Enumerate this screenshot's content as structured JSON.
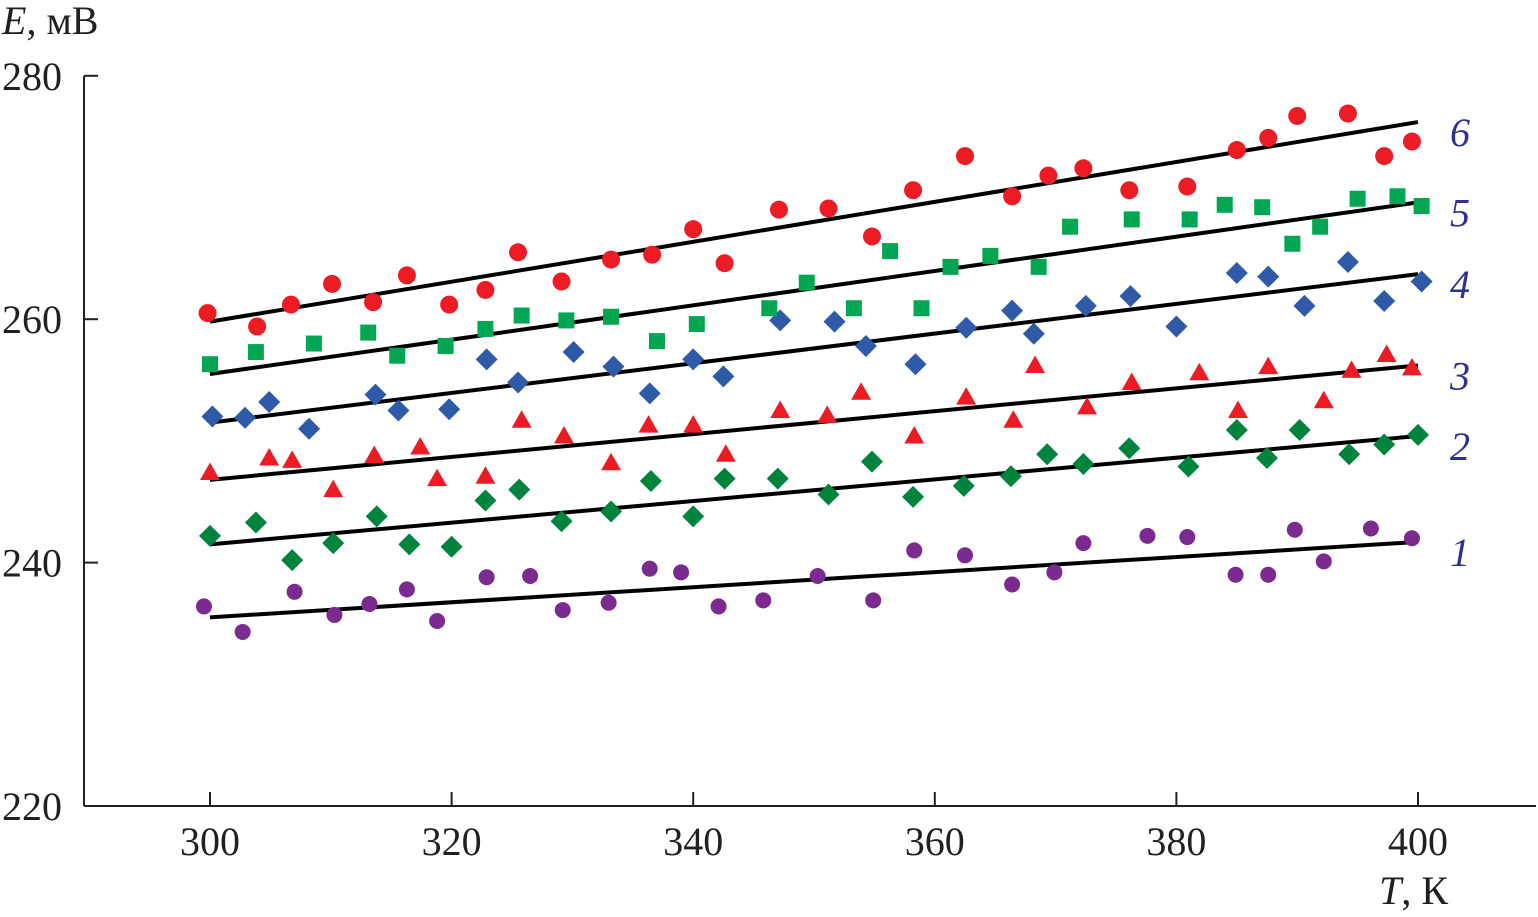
{
  "chart_data": {
    "type": "scatter",
    "xlabel": {
      "symbol": "T",
      "unit": ", К"
    },
    "ylabel": {
      "symbol": "E",
      "unit": ", мВ"
    },
    "xlim": [
      290,
      410
    ],
    "ylim": [
      220,
      280
    ],
    "xticks": [
      300,
      320,
      340,
      360,
      380,
      400
    ],
    "yticks": [
      220,
      240,
      260,
      280
    ],
    "grid": false,
    "series": [
      {
        "label": "1",
        "marker": "circle-small",
        "color": "#7b2a8f",
        "fit": [
          [
            300,
            235.5
          ],
          [
            400,
            241.7
          ]
        ],
        "points": [
          [
            299.5,
            236.4
          ],
          [
            302.7,
            234.3
          ],
          [
            307,
            237.6
          ],
          [
            310.3,
            235.7
          ],
          [
            313.2,
            236.6
          ],
          [
            316.3,
            237.8
          ],
          [
            318.8,
            235.2
          ],
          [
            322.9,
            238.8
          ],
          [
            326.5,
            238.9
          ],
          [
            329.2,
            236.1
          ],
          [
            333,
            236.7
          ],
          [
            336.4,
            239.5
          ],
          [
            339,
            239.2
          ],
          [
            342.1,
            236.4
          ],
          [
            345.8,
            236.9
          ],
          [
            350.3,
            238.9
          ],
          [
            354.9,
            236.9
          ],
          [
            358.3,
            241
          ],
          [
            362.5,
            240.6
          ],
          [
            366.4,
            238.2
          ],
          [
            369.9,
            239.2
          ],
          [
            372.3,
            241.6
          ],
          [
            377.6,
            242.2
          ],
          [
            380.9,
            242.1
          ],
          [
            384.9,
            239
          ],
          [
            387.6,
            239
          ],
          [
            389.8,
            242.7
          ],
          [
            392.2,
            240.1
          ],
          [
            396.1,
            242.8
          ],
          [
            399.5,
            242
          ]
        ]
      },
      {
        "label": "2",
        "marker": "diamond",
        "color": "#00843d",
        "fit": [
          [
            300,
            241.5
          ],
          [
            400,
            250.4
          ]
        ],
        "points": [
          [
            300,
            242.2
          ],
          [
            303.8,
            243.3
          ],
          [
            306.8,
            240.2
          ],
          [
            310.2,
            241.6
          ],
          [
            313.8,
            243.8
          ],
          [
            316.5,
            241.5
          ],
          [
            320,
            241.3
          ],
          [
            322.8,
            245.1
          ],
          [
            325.6,
            246
          ],
          [
            329.1,
            243.4
          ],
          [
            333.2,
            244.2
          ],
          [
            336.5,
            246.7
          ],
          [
            340,
            243.8
          ],
          [
            342.6,
            246.9
          ],
          [
            347,
            246.9
          ],
          [
            351.2,
            245.6
          ],
          [
            354.8,
            248.3
          ],
          [
            358.2,
            245.4
          ],
          [
            362.4,
            246.3
          ],
          [
            366.3,
            247.1
          ],
          [
            369.3,
            248.9
          ],
          [
            372.3,
            248.1
          ],
          [
            376.1,
            249.4
          ],
          [
            381,
            247.9
          ],
          [
            385,
            250.9
          ],
          [
            387.5,
            248.6
          ],
          [
            390.2,
            250.9
          ],
          [
            394.3,
            248.9
          ],
          [
            397.2,
            249.7
          ],
          [
            400,
            250.5
          ]
        ]
      },
      {
        "label": "3",
        "marker": "triangle",
        "color": "#ed1c24",
        "fit": [
          [
            300,
            246.8
          ],
          [
            400,
            256.2
          ]
        ],
        "points": [
          [
            300,
            247.4
          ],
          [
            304.9,
            248.6
          ],
          [
            306.8,
            248.4
          ],
          [
            310.2,
            246
          ],
          [
            313.6,
            248.8
          ],
          [
            317.4,
            249.5
          ],
          [
            318.8,
            246.9
          ],
          [
            322.8,
            247.1
          ],
          [
            325.8,
            251.7
          ],
          [
            329.3,
            250.4
          ],
          [
            333.2,
            248.2
          ],
          [
            336.3,
            251.3
          ],
          [
            340,
            251.3
          ],
          [
            342.7,
            248.9
          ],
          [
            347.2,
            252.5
          ],
          [
            351.1,
            252.1
          ],
          [
            353.9,
            254
          ],
          [
            358.3,
            250.4
          ],
          [
            362.6,
            253.6
          ],
          [
            366.5,
            251.7
          ],
          [
            368.3,
            256.2
          ],
          [
            372.6,
            252.8
          ],
          [
            376.3,
            254.8
          ],
          [
            381.9,
            255.6
          ],
          [
            385.1,
            252.5
          ],
          [
            387.6,
            256.1
          ],
          [
            392.2,
            253.3
          ],
          [
            394.5,
            255.8
          ],
          [
            397.4,
            257.1
          ],
          [
            399.5,
            256
          ]
        ]
      },
      {
        "label": "4",
        "marker": "diamond",
        "color": "#2e5aa8",
        "fit": [
          [
            300,
            251.5
          ],
          [
            400,
            263.7
          ]
        ],
        "points": [
          [
            300.2,
            252
          ],
          [
            302.9,
            251.9
          ],
          [
            304.9,
            253.2
          ],
          [
            308.2,
            251
          ],
          [
            313.7,
            253.8
          ],
          [
            315.6,
            252.5
          ],
          [
            319.8,
            252.6
          ],
          [
            322.9,
            256.7
          ],
          [
            325.5,
            254.8
          ],
          [
            330.1,
            257.3
          ],
          [
            333.4,
            256.1
          ],
          [
            336.4,
            253.9
          ],
          [
            340,
            256.7
          ],
          [
            342.5,
            255.3
          ],
          [
            347.2,
            259.9
          ],
          [
            351.7,
            259.8
          ],
          [
            354.3,
            257.8
          ],
          [
            358.4,
            256.3
          ],
          [
            362.6,
            259.3
          ],
          [
            366.4,
            260.7
          ],
          [
            368.2,
            258.8
          ],
          [
            372.5,
            261.1
          ],
          [
            376.2,
            261.9
          ],
          [
            380,
            259.4
          ],
          [
            385,
            263.8
          ],
          [
            387.6,
            263.5
          ],
          [
            390.6,
            261.1
          ],
          [
            394.2,
            264.7
          ],
          [
            397.2,
            261.5
          ],
          [
            400.3,
            263.1
          ]
        ]
      },
      {
        "label": "5",
        "marker": "square",
        "color": "#00a651",
        "fit": [
          [
            300,
            255.5
          ],
          [
            400,
            269.6
          ]
        ],
        "points": [
          [
            300,
            256.3
          ],
          [
            303.8,
            257.3
          ],
          [
            308.6,
            258
          ],
          [
            313.1,
            258.9
          ],
          [
            315.5,
            257
          ],
          [
            319.5,
            257.8
          ],
          [
            322.8,
            259.2
          ],
          [
            325.8,
            260.3
          ],
          [
            329.5,
            259.9
          ],
          [
            333.2,
            260.2
          ],
          [
            337,
            258.2
          ],
          [
            340.3,
            259.6
          ],
          [
            346.3,
            260.9
          ],
          [
            349.4,
            263
          ],
          [
            353.3,
            260.9
          ],
          [
            356.3,
            265.6
          ],
          [
            358.9,
            260.9
          ],
          [
            361.3,
            264.3
          ],
          [
            364.6,
            265.2
          ],
          [
            368.6,
            264.3
          ],
          [
            371.2,
            267.6
          ],
          [
            376.3,
            268.2
          ],
          [
            381.1,
            268.2
          ],
          [
            384,
            269.4
          ],
          [
            387.1,
            269.2
          ],
          [
            389.6,
            266.2
          ],
          [
            391.9,
            267.6
          ],
          [
            395,
            269.9
          ],
          [
            398.3,
            270.1
          ],
          [
            400.3,
            269.3
          ]
        ]
      },
      {
        "label": "6",
        "marker": "circle",
        "color": "#ed1c24",
        "fit": [
          [
            300,
            259.8
          ],
          [
            400,
            276.2
          ]
        ],
        "points": [
          [
            299.8,
            260.5
          ],
          [
            303.9,
            259.4
          ],
          [
            306.7,
            261.2
          ],
          [
            310.1,
            262.9
          ],
          [
            313.5,
            261.4
          ],
          [
            316.3,
            263.6
          ],
          [
            319.8,
            261.2
          ],
          [
            322.8,
            262.4
          ],
          [
            325.5,
            265.5
          ],
          [
            329.1,
            263.1
          ],
          [
            333.2,
            264.9
          ],
          [
            336.6,
            265.3
          ],
          [
            340,
            267.4
          ],
          [
            342.6,
            264.6
          ],
          [
            347.1,
            269
          ],
          [
            351.2,
            269.1
          ],
          [
            354.8,
            266.8
          ],
          [
            358.2,
            270.6
          ],
          [
            362.5,
            273.4
          ],
          [
            366.4,
            270.1
          ],
          [
            369.4,
            271.8
          ],
          [
            372.3,
            272.4
          ],
          [
            376.1,
            270.6
          ],
          [
            380.9,
            270.9
          ],
          [
            385,
            273.9
          ],
          [
            387.6,
            274.9
          ],
          [
            390,
            276.7
          ],
          [
            394.2,
            276.9
          ],
          [
            397.2,
            273.4
          ],
          [
            399.5,
            274.6
          ]
        ]
      }
    ]
  }
}
